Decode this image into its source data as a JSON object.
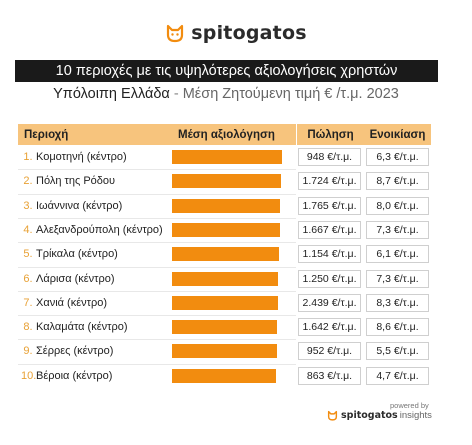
{
  "brand": {
    "name": "spitogatos",
    "logo_icon": "cat-face-icon"
  },
  "title": "10 περιοχές με τις υψηλότερες αξιολογήσεις χρηστών",
  "subtitle": {
    "main": "Υπόλοιπη Ελλάδα",
    "sep": " - ",
    "rest": "Μέση Ζητούμενη τιμή € /τ.μ. 2023"
  },
  "headers": {
    "area": "Περιοχή",
    "rating": "Μέση αξιολόγηση",
    "sale": "Πώληση",
    "rent": "Ενοικίαση"
  },
  "colors": {
    "bar": "#f28c0f",
    "header": "#f7c47d",
    "rank": "#e8a135",
    "title_bg": "#1a1a1a"
  },
  "chart_data": {
    "type": "bar",
    "orientation": "horizontal",
    "title": "10 περιοχές με τις υψηλότερες αξιολογήσεις χρηστών",
    "subtitle": "Υπόλοιπη Ελλάδα - Μέση Ζητούμενη τιμή € /τ.μ. 2023",
    "categories": [
      "Κομοτηνή (κέντρο)",
      "Πόλη της Ρόδου",
      "Ιωάννινα (κέντρο)",
      "Αλεξανδρούπολη (κέντρο)",
      "Τρίκαλα (κέντρο)",
      "Λάρισα (κέντρο)",
      "Χανιά (κέντρο)",
      "Καλαμάτα (κέντρο)",
      "Σέρρες (κέντρο)",
      "Βέροια (κέντρο)"
    ],
    "ranks": [
      "1.",
      "2.",
      "3.",
      "4.",
      "5.",
      "6.",
      "7.",
      "8.",
      "9.",
      "10."
    ],
    "series": [
      {
        "name": "Μέση αξιολόγηση",
        "values": [
          4.45,
          4.4,
          4.37,
          4.36,
          4.33,
          4.3,
          4.28,
          4.25,
          4.23,
          4.2
        ]
      }
    ],
    "xlim": [
      0,
      4.65
    ],
    "table_columns": [
      "Πώληση",
      "Ενοικίαση"
    ],
    "sale": [
      "948 €/τ.μ.",
      "1.724 €/τ.μ.",
      "1.765 €/τ.μ.",
      "1.667 €/τ.μ.",
      "1.154 €/τ.μ.",
      "1.250 €/τ.μ.",
      "2.439 €/τ.μ.",
      "1.642 €/τ.μ.",
      "952 €/τ.μ.",
      "863 €/τ.μ."
    ],
    "rent": [
      "6,3 €/τ.μ.",
      "8,7 €/τ.μ.",
      "8,0 €/τ.μ.",
      "7,3 €/τ.μ.",
      "6,1 €/τ.μ.",
      "7,3 €/τ.μ.",
      "8,3 €/τ.μ.",
      "8,6 €/τ.μ.",
      "5,5 €/τ.μ.",
      "4,7 €/τ.μ."
    ]
  },
  "footer": {
    "powered": "powered by",
    "brand": "spitogatos",
    "suffix": "insights"
  }
}
